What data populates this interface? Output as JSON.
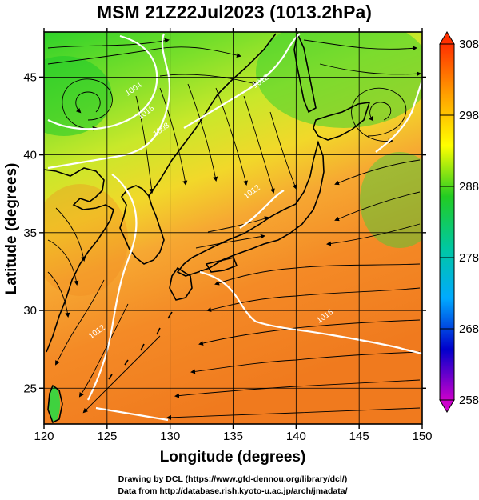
{
  "title": "MSM 21Z22Jul2023 (1013.2hPa)",
  "x_axis": {
    "label": "Longitude (degrees)",
    "range": [
      120,
      150
    ],
    "ticks": [
      120,
      125,
      130,
      135,
      140,
      145,
      150
    ]
  },
  "y_axis": {
    "label": "Latitude  (degrees)",
    "range": [
      22.7,
      47.9
    ],
    "ticks": [
      25,
      30,
      35,
      40,
      45
    ]
  },
  "colorbar": {
    "range": [
      258,
      308
    ],
    "ticks": [
      258,
      268,
      278,
      288,
      298,
      308
    ],
    "colors": [
      "#cc00cc",
      "#0000cc",
      "#00aaff",
      "#00c8a0",
      "#22cc22",
      "#ffff00",
      "#ffa000",
      "#ff3000"
    ]
  },
  "isobars": [
    {
      "label": "1004",
      "lon": 127.2,
      "lat": 44.1
    },
    {
      "label": "1008",
      "lon": 129.4,
      "lat": 41.5
    },
    {
      "label": "1012",
      "lon": 124.3,
      "lat": 28.5
    },
    {
      "label": "1012",
      "lon": 137.3,
      "lat": 44.6
    },
    {
      "label": "1012",
      "lon": 136.6,
      "lat": 37.5
    },
    {
      "label": "1016",
      "lon": 128.2,
      "lat": 42.6
    },
    {
      "label": "1016",
      "lon": 142.4,
      "lat": 29.5
    }
  ],
  "credits": [
    "Drawing by DCL (https://www.gfd-dennou.org/library/dcl/)",
    "Data from http://database.rish.kyoto-u.ac.jp/arch/jmadata/"
  ]
}
